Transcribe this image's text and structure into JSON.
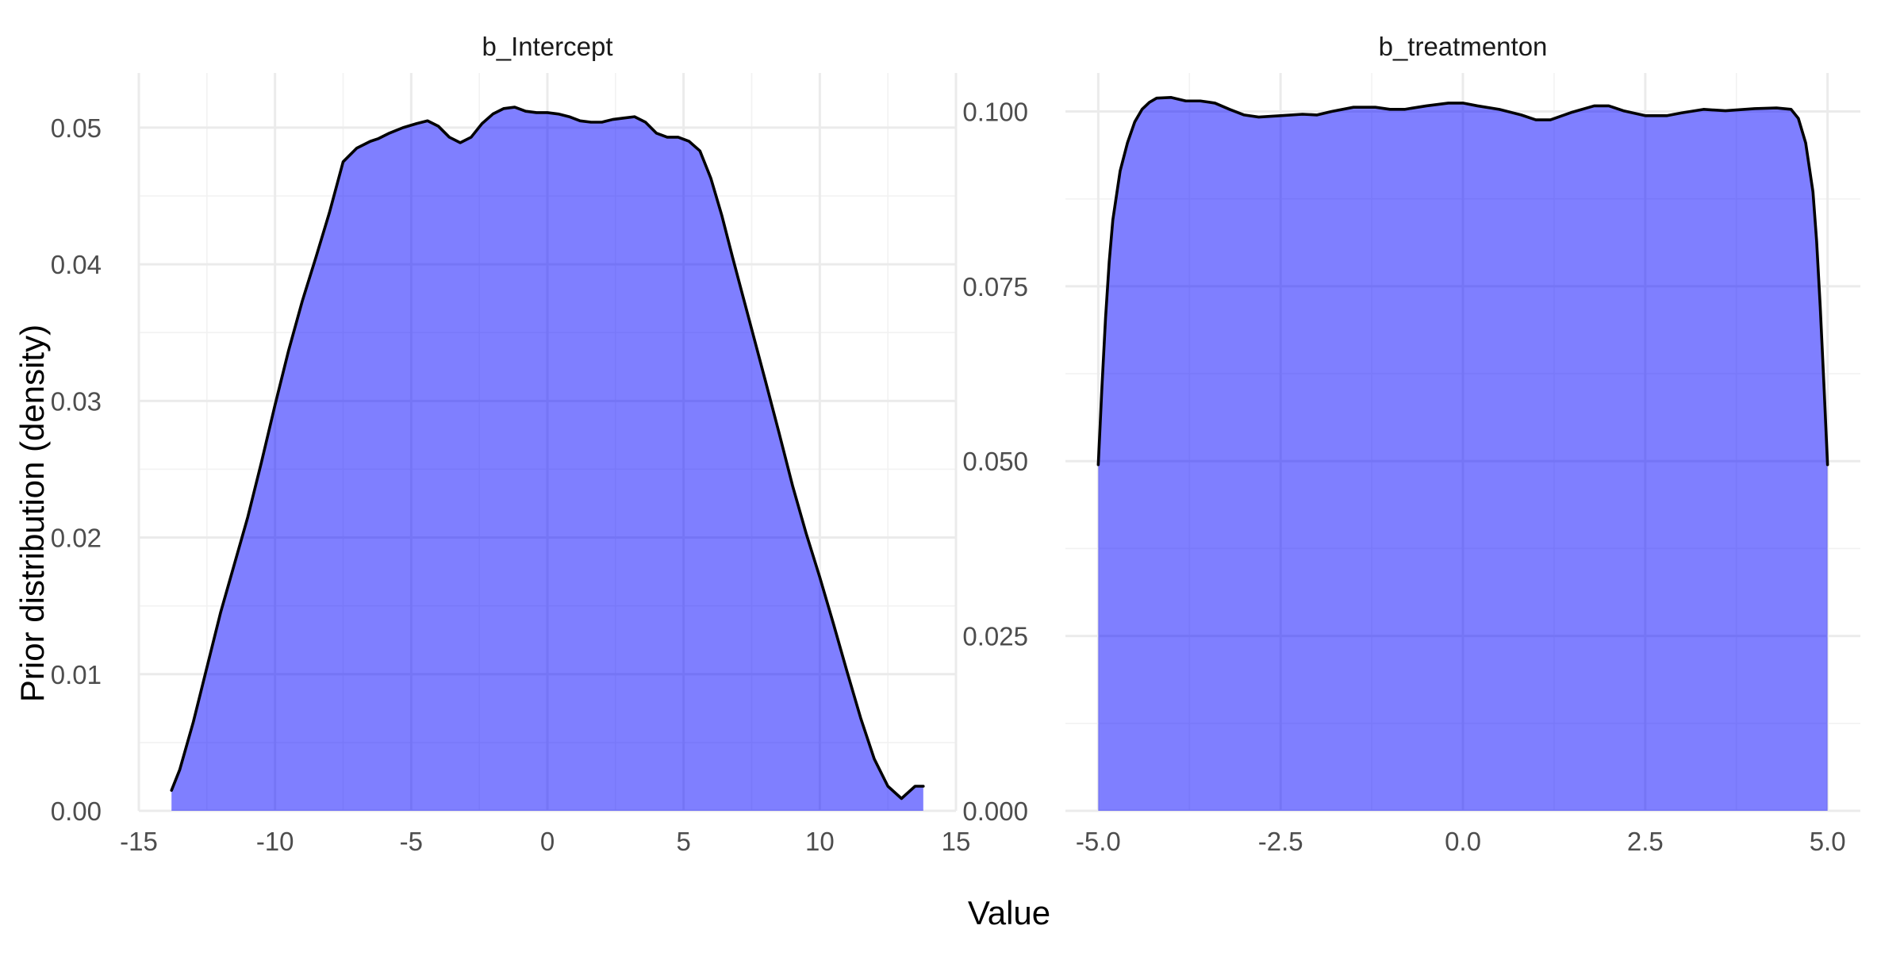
{
  "colors": {
    "fill": "#0000ff",
    "fill_opacity": 0.5,
    "line": "#000000",
    "grid": "#ebebeb",
    "background": "#ffffff"
  },
  "chart_data": {
    "type": "area",
    "xlabel": "Value",
    "ylabel": "Prior distribution (density)",
    "grid": true,
    "legend": "none",
    "panels": [
      {
        "title": "b_Intercept",
        "xlim": [
          -15,
          15
        ],
        "ylim": [
          0,
          0.054
        ],
        "x_ticks": [
          -15,
          -10,
          -5,
          0,
          5,
          10,
          15
        ],
        "x_tick_labels": [
          "-15",
          "-10",
          "-5",
          "0",
          "5",
          "10",
          "15"
        ],
        "y_ticks": [
          0,
          0.01,
          0.02,
          0.03,
          0.04,
          0.05
        ],
        "y_tick_labels": [
          "0.00",
          "0.01",
          "0.02",
          "0.03",
          "0.04",
          "0.05"
        ],
        "series": [
          {
            "x": [
              -13.8,
              -13.5,
              -13,
              -12.5,
              -12,
              -11.5,
              -11,
              -10.5,
              -10,
              -9.5,
              -9,
              -8.5,
              -8,
              -7.5,
              -7,
              -6.5,
              -6.2,
              -5.8,
              -5.3,
              -4.8,
              -4.4,
              -4.0,
              -3.6,
              -3.2,
              -2.8,
              -2.4,
              -2.0,
              -1.6,
              -1.2,
              -0.8,
              -0.4,
              0,
              0.4,
              0.8,
              1.2,
              1.6,
              2.0,
              2.4,
              2.8,
              3.2,
              3.6,
              4.0,
              4.4,
              4.8,
              5.2,
              5.6,
              6.0,
              6.4,
              6.8,
              7.2,
              7.6,
              8.0,
              8.5,
              9.0,
              9.5,
              10.0,
              10.5,
              11.0,
              11.5,
              12.0,
              12.5,
              13.0,
              13.5,
              13.8
            ],
            "y": [
              0.0015,
              0.003,
              0.0065,
              0.0105,
              0.0145,
              0.018,
              0.0215,
              0.0255,
              0.0297,
              0.0337,
              0.0373,
              0.0405,
              0.0438,
              0.0475,
              0.0485,
              0.049,
              0.0492,
              0.0496,
              0.05,
              0.0503,
              0.0505,
              0.0501,
              0.0493,
              0.0489,
              0.0493,
              0.0503,
              0.051,
              0.0514,
              0.0515,
              0.0512,
              0.0511,
              0.0511,
              0.051,
              0.0508,
              0.0505,
              0.0504,
              0.0504,
              0.0506,
              0.0507,
              0.0508,
              0.0504,
              0.0496,
              0.0493,
              0.0493,
              0.049,
              0.0483,
              0.0463,
              0.0436,
              0.0405,
              0.0375,
              0.0345,
              0.0315,
              0.0277,
              0.0238,
              0.0203,
              0.0171,
              0.0137,
              0.0102,
              0.0068,
              0.0038,
              0.0018,
              0.0009,
              0.0018,
              0.0018
            ]
          }
        ]
      },
      {
        "title": "b_treatmenton",
        "xlim": [
          -5.45,
          5.45
        ],
        "ylim": [
          0,
          0.1055
        ],
        "x_ticks": [
          -5,
          -2.5,
          0,
          2.5,
          5
        ],
        "x_tick_labels": [
          "-5.0",
          "-2.5",
          "0.0",
          "2.5",
          "5.0"
        ],
        "y_ticks": [
          0,
          0.025,
          0.05,
          0.075,
          0.1
        ],
        "y_tick_labels": [
          "0.000",
          "0.025",
          "0.050",
          "0.075",
          "0.100"
        ],
        "series": [
          {
            "x": [
              -5.0,
              -4.95,
              -4.9,
              -4.85,
              -4.8,
              -4.7,
              -4.6,
              -4.5,
              -4.4,
              -4.3,
              -4.2,
              -4.0,
              -3.8,
              -3.6,
              -3.4,
              -3.2,
              -3.0,
              -2.8,
              -2.5,
              -2.2,
              -2.0,
              -1.8,
              -1.5,
              -1.2,
              -1.0,
              -0.8,
              -0.5,
              -0.2,
              0,
              0.2,
              0.5,
              0.8,
              1.0,
              1.2,
              1.5,
              1.8,
              2.0,
              2.2,
              2.5,
              2.8,
              3.0,
              3.3,
              3.6,
              4.0,
              4.3,
              4.5,
              4.6,
              4.7,
              4.8,
              4.85,
              4.9,
              4.95,
              5.0
            ],
            "y": [
              0.0495,
              0.0605,
              0.0705,
              0.0785,
              0.0845,
              0.0915,
              0.0955,
              0.0985,
              0.1003,
              0.1013,
              0.1019,
              0.102,
              0.1015,
              0.1015,
              0.1012,
              0.1003,
              0.0995,
              0.0992,
              0.0994,
              0.0996,
              0.0995,
              0.1,
              0.1006,
              0.1006,
              0.1003,
              0.1003,
              0.1008,
              0.1012,
              0.1012,
              0.1008,
              0.1003,
              0.0995,
              0.0988,
              0.0988,
              0.0999,
              0.1008,
              0.1008,
              0.1001,
              0.0994,
              0.0994,
              0.0998,
              0.1003,
              0.1001,
              0.1004,
              0.1005,
              0.1003,
              0.099,
              0.0955,
              0.0885,
              0.0815,
              0.072,
              0.061,
              0.0495
            ]
          }
        ]
      }
    ]
  }
}
